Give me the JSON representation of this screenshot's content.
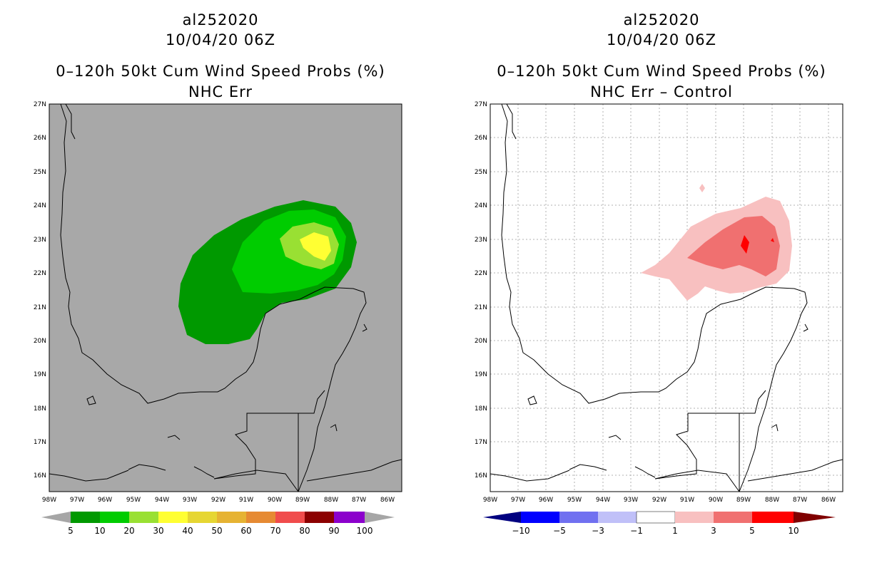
{
  "left_panel": {
    "storm_id": "al252020",
    "datetime": "10/04/20 06Z",
    "product": "0–120h 50kt Cum Wind Speed Probs (%)",
    "subtitle": "NHC Err",
    "colorbar": {
      "labels": [
        "5",
        "10",
        "20",
        "30",
        "40",
        "50",
        "60",
        "70",
        "80",
        "90",
        "100"
      ],
      "colors": [
        "#009900",
        "#00cc00",
        "#99e033",
        "#ffff33",
        "#e6d633",
        "#e6b333",
        "#e68a33",
        "#f04c4c",
        "#8c0000",
        "#8c00cc"
      ],
      "under_color": "#a6a6a6",
      "over_color": "#a6a6a6"
    },
    "background_color": "#a8a8a8"
  },
  "right_panel": {
    "storm_id": "al252020",
    "datetime": "10/04/20 06Z",
    "product": "0–120h 50kt Cum Wind Speed Probs (%)",
    "subtitle": "NHC Err – Control",
    "colorbar": {
      "labels": [
        "−10",
        "−5",
        "−3",
        "−1",
        "1",
        "3",
        "5",
        "10"
      ],
      "colors": [
        "#0000a0",
        "#0000ff",
        "#7070f0",
        "#c0c0f8",
        "#ffffff",
        "#f8c0c0",
        "#f07070",
        "#ff0000",
        "#8c0000"
      ],
      "under_color": "#000080",
      "over_color": "#800000"
    },
    "background_color": "#ffffff"
  },
  "map_axes": {
    "lat_labels": [
      "27N",
      "26N",
      "25N",
      "24N",
      "23N",
      "22N",
      "21N",
      "20N",
      "19N",
      "18N",
      "17N",
      "16N"
    ],
    "lon_labels": [
      "98W",
      "97W",
      "96W",
      "95W",
      "94W",
      "93W",
      "92W",
      "91W",
      "90W",
      "89W",
      "88W",
      "87W",
      "86W"
    ]
  }
}
